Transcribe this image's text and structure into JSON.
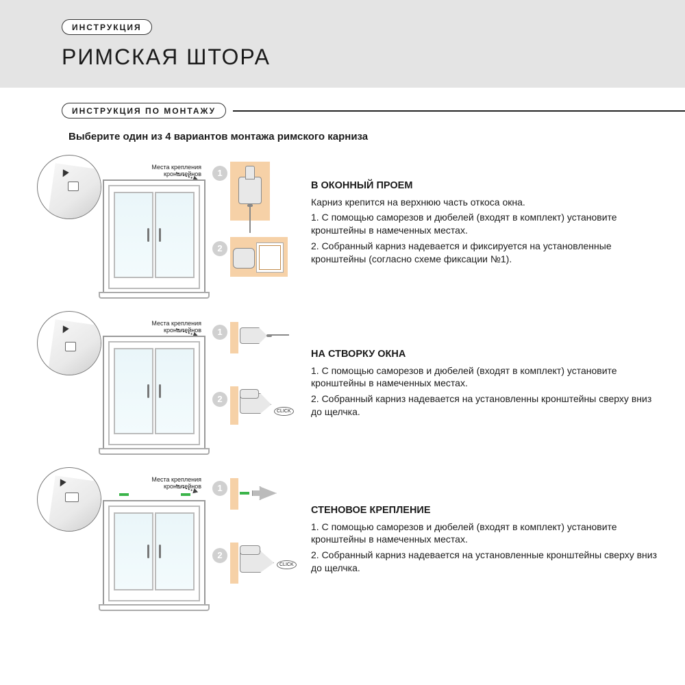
{
  "colors": {
    "header_bg": "#e4e4e4",
    "page_bg": "#ffffff",
    "text": "#1a1a1a",
    "line": "#222222",
    "frame": "#999999",
    "glass": "#eaf6f9",
    "green_mark": "#3bb44a",
    "peach": "#f6d1a7",
    "badge": "#d0d0d0"
  },
  "typography": {
    "title_fontsize": 32,
    "pill_fontsize": 12,
    "subhead_fontsize": 15,
    "body_fontsize": 14,
    "bracket_label_fontsize": 9
  },
  "header": {
    "pill": "ИНСТРУКЦИЯ",
    "title": "РИМСКАЯ ШТОРА"
  },
  "section_pill": "ИНСТРУКЦИЯ ПО МОНТАЖУ",
  "subhead": "Выберите один из 4 вариантов монтажа римского карниза",
  "bracket_label": "Места крепления\nкронштейнов",
  "click_label": "CLICK",
  "blocks": [
    {
      "title": "В ОКОННЫЙ ПРОЕМ",
      "lead": "Карниз крепится на верхнюю часть откоса окна.",
      "steps": [
        "1. С помощью саморезов и дюбелей (входят в комплект) установите кронштейны в намеченных местах.",
        "2. Собранный карниз надевается и фиксируется на установленные кронштейны (согласно схеме фиксации №1)."
      ]
    },
    {
      "title": "НА СТВОРКУ ОКНА",
      "lead": "",
      "steps": [
        "1. С помощью саморезов и дюбелей (входят в комплект) установите кронштейны в намеченных местах.",
        "2. Собранный карниз надевается на установленны кронштейны сверху вниз до щелчка."
      ]
    },
    {
      "title": "СТЕНОВОЕ КРЕПЛЕНИЕ",
      "lead": "",
      "steps": [
        "1. С помощью саморезов и дюбелей (входят в комплект) установите кронштейны в намеченных местах.",
        "2. Собранный карниз надевается на установленные кронштейны сверху вниз до щелчка."
      ]
    }
  ]
}
